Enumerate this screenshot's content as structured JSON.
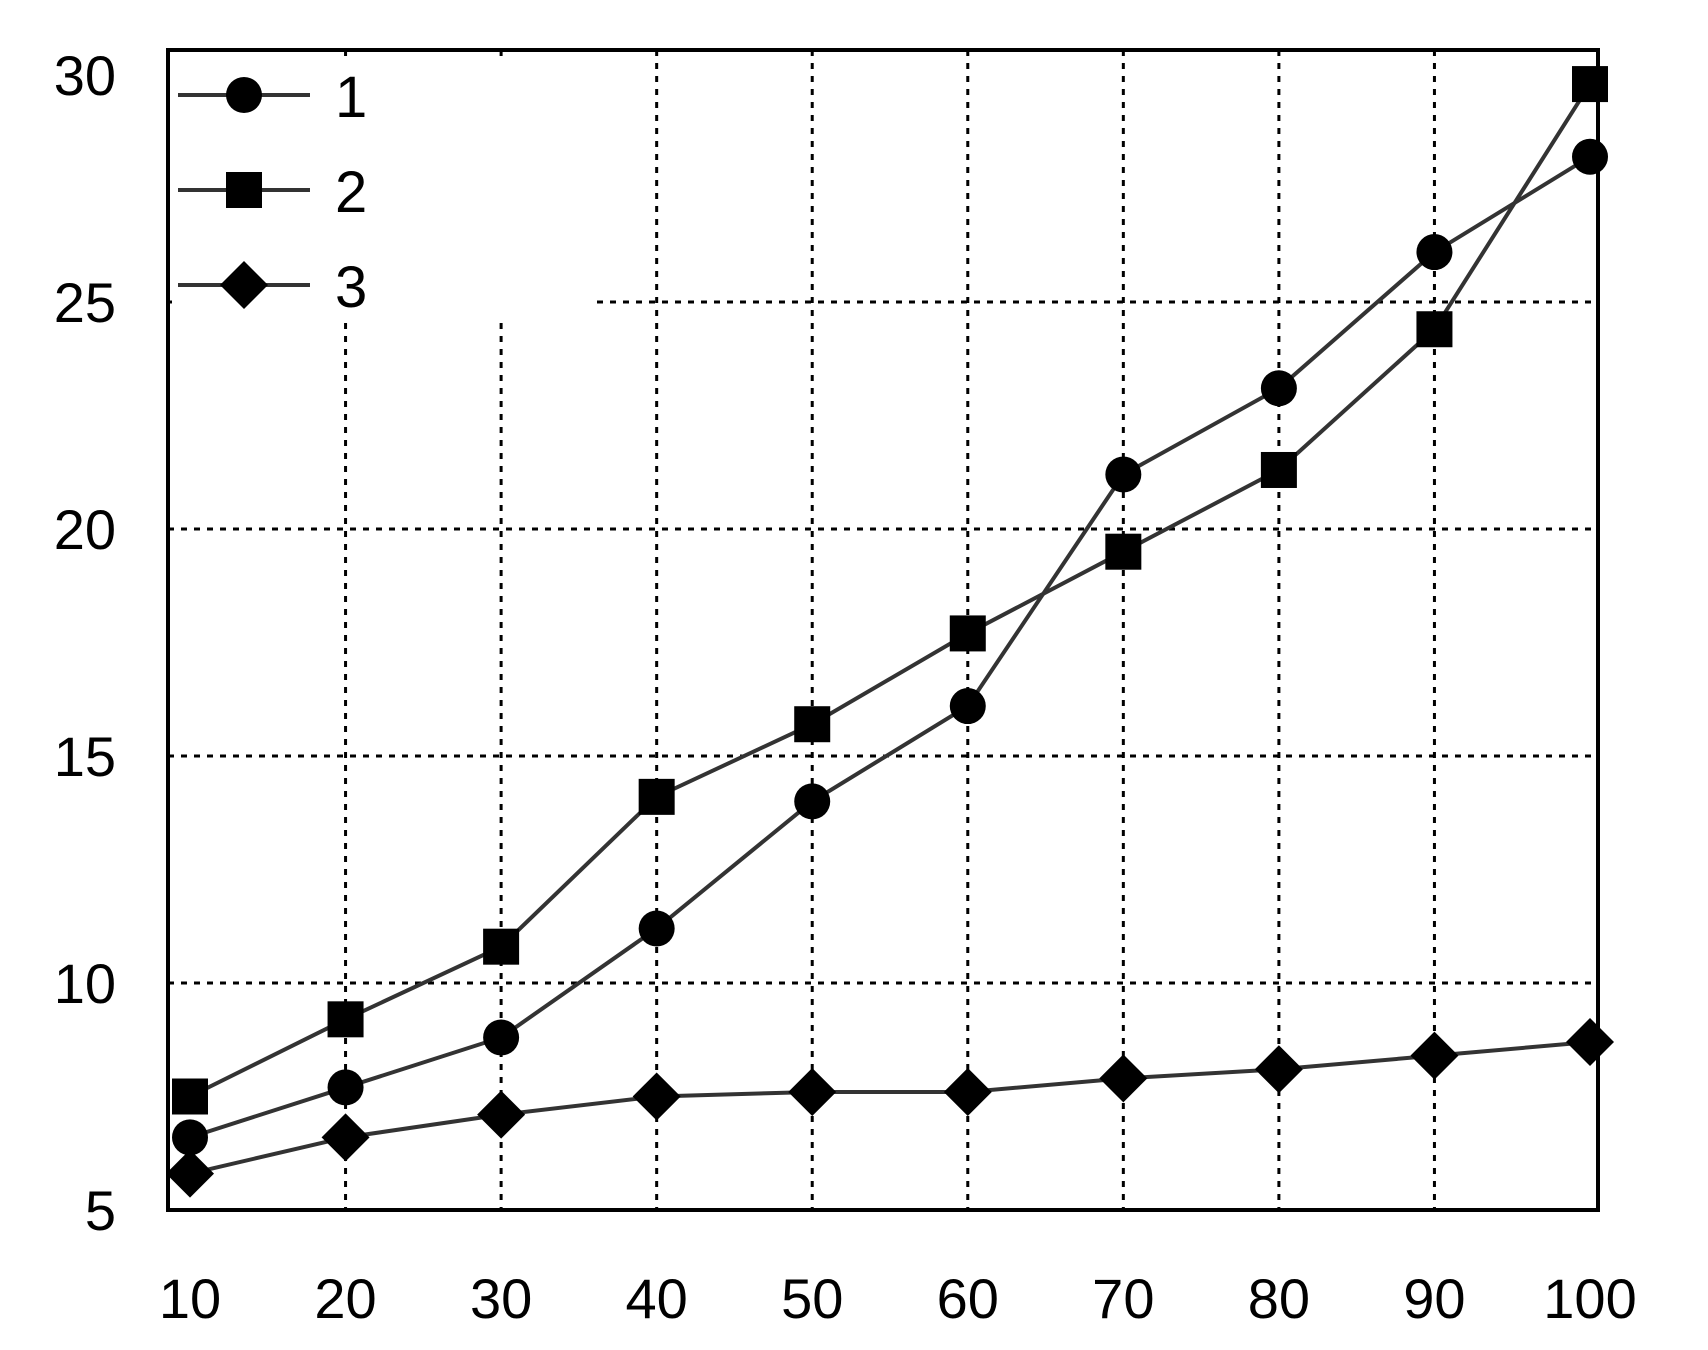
{
  "chart_data": {
    "type": "line",
    "title": "",
    "xlabel": "",
    "ylabel": "",
    "x": [
      10,
      20,
      30,
      40,
      50,
      60,
      70,
      80,
      90,
      100
    ],
    "xlim": [
      10,
      100
    ],
    "ylim": [
      5,
      30
    ],
    "x_ticks": [
      "10",
      "20",
      "30",
      "40",
      "50",
      "60",
      "70",
      "80",
      "90",
      "100"
    ],
    "y_ticks": [
      "5",
      "10",
      "15",
      "20",
      "25",
      "30"
    ],
    "grid": true,
    "legend_position": "top-left",
    "series": [
      {
        "name": "1",
        "marker": "circle",
        "values": [
          6.6,
          7.7,
          8.8,
          11.2,
          14.0,
          16.1,
          21.2,
          23.1,
          26.1,
          28.2
        ]
      },
      {
        "name": "2",
        "marker": "square",
        "values": [
          7.5,
          9.2,
          10.8,
          14.1,
          15.7,
          17.7,
          19.5,
          21.3,
          24.4,
          29.8
        ]
      },
      {
        "name": "3",
        "marker": "diamond",
        "values": [
          5.8,
          6.6,
          7.1,
          7.5,
          7.6,
          7.6,
          7.9,
          8.1,
          8.4,
          8.7
        ]
      }
    ]
  }
}
